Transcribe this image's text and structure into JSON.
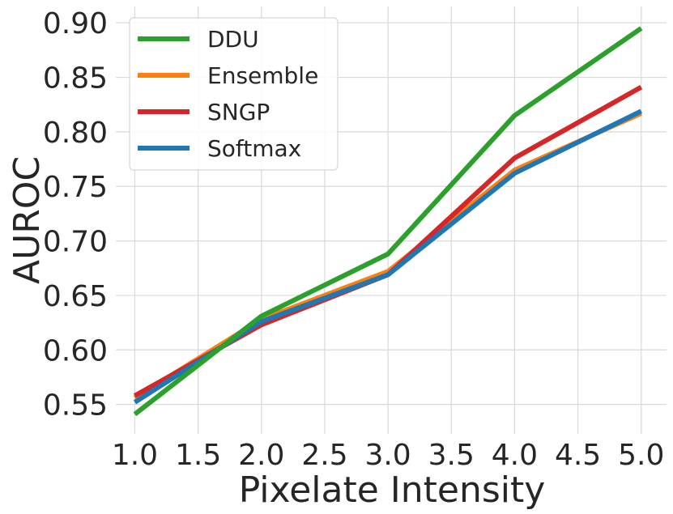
{
  "chart_data": {
    "type": "line",
    "xlabel": "Pixelate Intensity",
    "ylabel": "AUROC",
    "x": [
      1.0,
      2.0,
      3.0,
      4.0,
      5.0
    ],
    "xlim": [
      0.85,
      5.2
    ],
    "ylim": [
      0.523,
      0.915
    ],
    "xticks": [
      1.0,
      1.5,
      2.0,
      2.5,
      3.0,
      3.5,
      4.0,
      4.5,
      5.0
    ],
    "xtick_labels": [
      "1.0",
      "1.5",
      "2.0",
      "2.5",
      "3.0",
      "3.5",
      "4.0",
      "4.5",
      "5.0"
    ],
    "yticks": [
      0.55,
      0.6,
      0.65,
      0.7,
      0.75,
      0.8,
      0.85,
      0.9
    ],
    "ytick_labels": [
      "0.55",
      "0.60",
      "0.65",
      "0.70",
      "0.75",
      "0.80",
      "0.85",
      "0.90"
    ],
    "grid": true,
    "legend_position": "top-left",
    "series": [
      {
        "name": "Ensemble",
        "color": "#ff7f0e",
        "values": [
          0.556,
          0.628,
          0.672,
          0.765,
          0.817
        ]
      },
      {
        "name": "SNGP",
        "color": "#d62728",
        "values": [
          0.558,
          0.623,
          0.669,
          0.776,
          0.841
        ]
      },
      {
        "name": "Softmax",
        "color": "#1f77b4",
        "values": [
          0.552,
          0.626,
          0.669,
          0.762,
          0.819
        ]
      },
      {
        "name": "DDU",
        "color": "#2ca02c",
        "values": [
          0.541,
          0.631,
          0.688,
          0.815,
          0.895
        ]
      }
    ],
    "legend_order": [
      "DDU",
      "Ensemble",
      "SNGP",
      "Softmax"
    ]
  }
}
